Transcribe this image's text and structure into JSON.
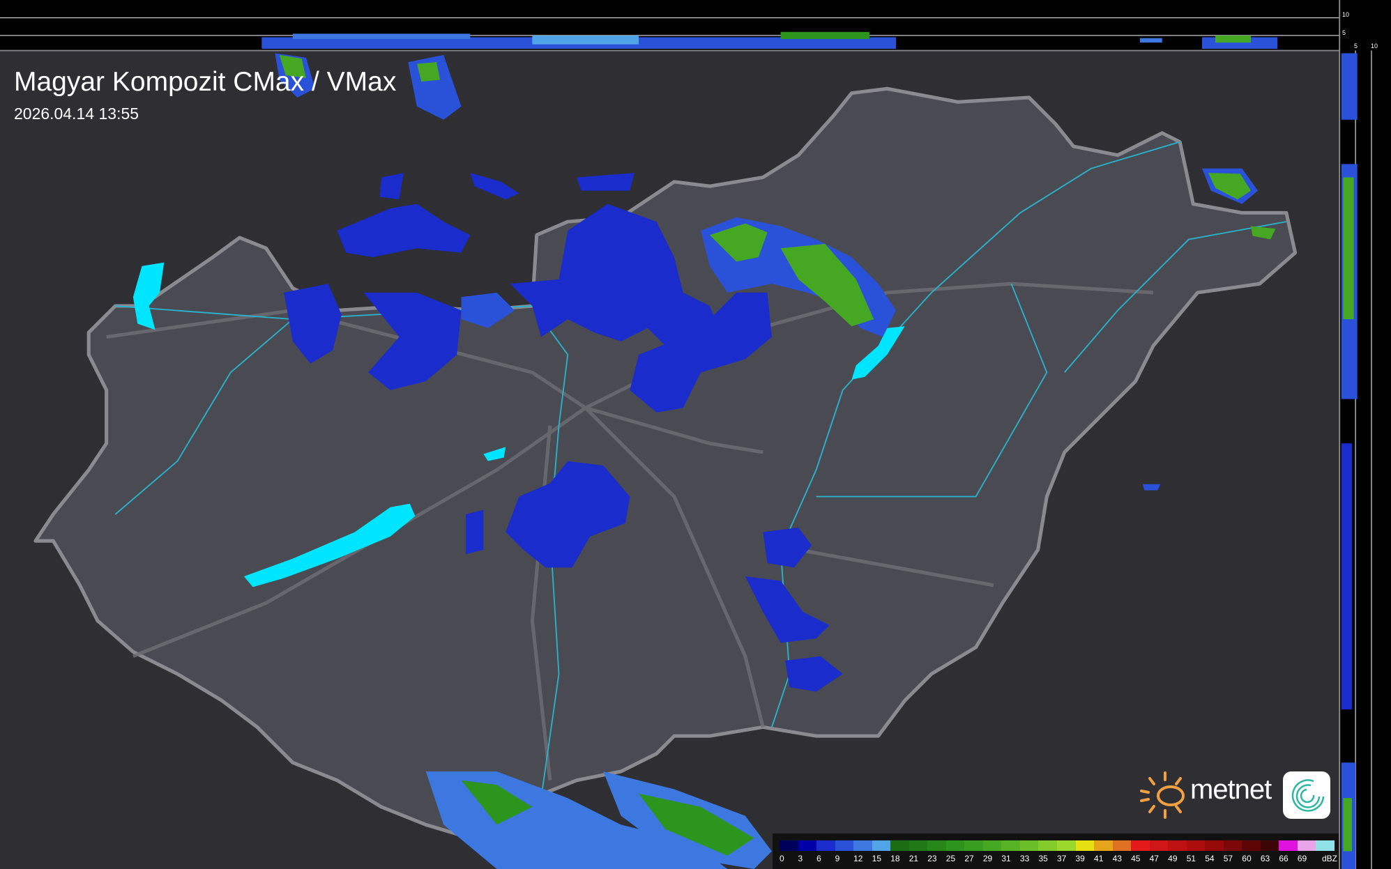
{
  "header": {
    "title": "Magyar Kompozit CMax / VMax",
    "timestamp": "2026.04.14 13:55"
  },
  "profile_axes": {
    "top_ticks": [
      "10",
      "5"
    ],
    "right_ticks": [
      "5",
      "10"
    ]
  },
  "legend": {
    "unit": "dBZ",
    "labels": [
      "0",
      "3",
      "6",
      "9",
      "12",
      "15",
      "18",
      "21",
      "23",
      "25",
      "27",
      "29",
      "31",
      "33",
      "35",
      "37",
      "39",
      "41",
      "43",
      "45",
      "47",
      "49",
      "51",
      "54",
      "57",
      "60",
      "63",
      "66",
      "69"
    ],
    "colors": [
      "#00005c",
      "#0000a8",
      "#1a2ccc",
      "#2a52d8",
      "#3c78e0",
      "#52a4e8",
      "#1c6c12",
      "#217816",
      "#27861a",
      "#2d941e",
      "#379e22",
      "#46a822",
      "#56b424",
      "#6abf28",
      "#84cc2c",
      "#9cd82c",
      "#e6e012",
      "#e6a41a",
      "#e07022",
      "#e41a1a",
      "#d01616",
      "#be1212",
      "#ac0e0e",
      "#980a0a",
      "#7c0808",
      "#5e0606",
      "#3c0404",
      "#e012e0",
      "#e8a4e8",
      "#90e0e8"
    ]
  },
  "brand": {
    "name": "metnet",
    "accent": "#f0a040",
    "icon_color": "#2ab8a0"
  },
  "map": {
    "background": "#2e2e33",
    "country_fill": "#4a4a52",
    "border_color": "#8a8a90",
    "river_color": "#2ab0c8",
    "lake_color": "#00e5ff"
  }
}
